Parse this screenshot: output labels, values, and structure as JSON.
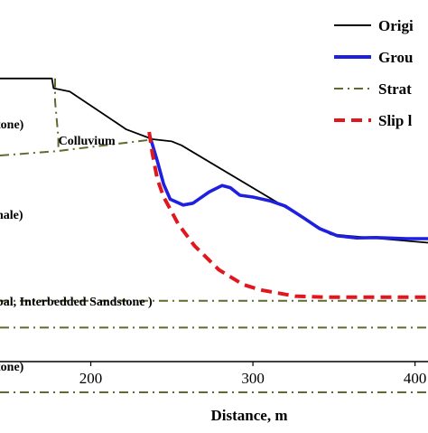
{
  "chart_data": {
    "type": "line",
    "xlabel": "Distance, m",
    "ylabel": "",
    "xlim": [
      144,
      408
    ],
    "ylim": [
      0,
      100
    ],
    "x_ticks": [
      200,
      300,
      400
    ],
    "grid": false,
    "legend_position": "top-right",
    "legend": [
      {
        "label": "Origi",
        "color": "#000000",
        "style": "solid"
      },
      {
        "label": "Grou",
        "color": "#1f1fe0",
        "style": "solid"
      },
      {
        "label": "Strat",
        "color": "#5f6b2e",
        "style": "dashdot"
      },
      {
        "label": "Slip l",
        "color": "#e0171f",
        "style": "dashed"
      }
    ],
    "series": [
      {
        "name": "Origi",
        "color": "#000000",
        "style": "solid",
        "points": [
          [
            144,
            78.3
          ],
          [
            176,
            78.3
          ],
          [
            177,
            75.6
          ],
          [
            187,
            74.7
          ],
          [
            222,
            64.2
          ],
          [
            238,
            61.5
          ],
          [
            250,
            60.9
          ],
          [
            256,
            59.8
          ],
          [
            348,
            35.2
          ],
          [
            410,
            32.8
          ],
          [
            416,
            29.0
          ]
        ]
      },
      {
        "name": "Grou",
        "color": "#1f1fe0",
        "style": "solid",
        "points": [
          [
            236,
            63.0
          ],
          [
            241,
            55.5
          ],
          [
            245,
            49.0
          ],
          [
            249,
            44.9
          ],
          [
            257,
            43.3
          ],
          [
            263,
            43.8
          ],
          [
            273,
            46.9
          ],
          [
            281,
            48.7
          ],
          [
            286,
            48.1
          ],
          [
            292,
            46.0
          ],
          [
            300,
            45.5
          ],
          [
            311,
            44.4
          ],
          [
            320,
            43.0
          ],
          [
            331,
            39.8
          ],
          [
            341,
            36.8
          ],
          [
            352,
            34.8
          ],
          [
            364,
            34.2
          ],
          [
            376,
            34.3
          ],
          [
            395,
            34.0
          ],
          [
            416,
            34.0
          ]
        ]
      },
      {
        "name": "Slip l",
        "color": "#e0171f",
        "style": "dashed",
        "points": [
          [
            236,
            63.5
          ],
          [
            238,
            57.5
          ],
          [
            241,
            50.5
          ],
          [
            245,
            45.5
          ],
          [
            254,
            38.0
          ],
          [
            264,
            32.0
          ],
          [
            279,
            25.4
          ],
          [
            294,
            21.3
          ],
          [
            305,
            19.8
          ],
          [
            326,
            18.1
          ],
          [
            345,
            17.8
          ],
          [
            372,
            17.8
          ],
          [
            416,
            17.8
          ]
        ]
      }
    ],
    "strata_lines": [
      {
        "points": [
          [
            144,
            57.0
          ],
          [
            179,
            58.2
          ],
          [
            236,
            61.3
          ]
        ]
      },
      {
        "points": [
          [
            178,
            78.3
          ],
          [
            178,
            72.0
          ],
          [
            180,
            62.0
          ],
          [
            180,
            58.2
          ]
        ]
      },
      {
        "points": [
          [
            144,
            16.8
          ],
          [
            416,
            16.8
          ]
        ]
      },
      {
        "points": [
          [
            144,
            9.4
          ],
          [
            416,
            9.4
          ]
        ]
      },
      {
        "points": [
          [
            144,
            -8.5
          ],
          [
            416,
            -8.5
          ]
        ]
      }
    ],
    "annotations": [
      {
        "text": "tone)",
        "x": 144,
        "y": 64.5
      },
      {
        "text": "Colluvium",
        "x": 180,
        "y": 60.0
      },
      {
        "text": "hale)",
        "x": 144,
        "y": 39.5
      },
      {
        "text": "bal, Interbedded Sandstone )",
        "x": 144,
        "y": 15.5
      },
      {
        "text": "tone)",
        "x": 144,
        "y": -2.5
      }
    ]
  }
}
